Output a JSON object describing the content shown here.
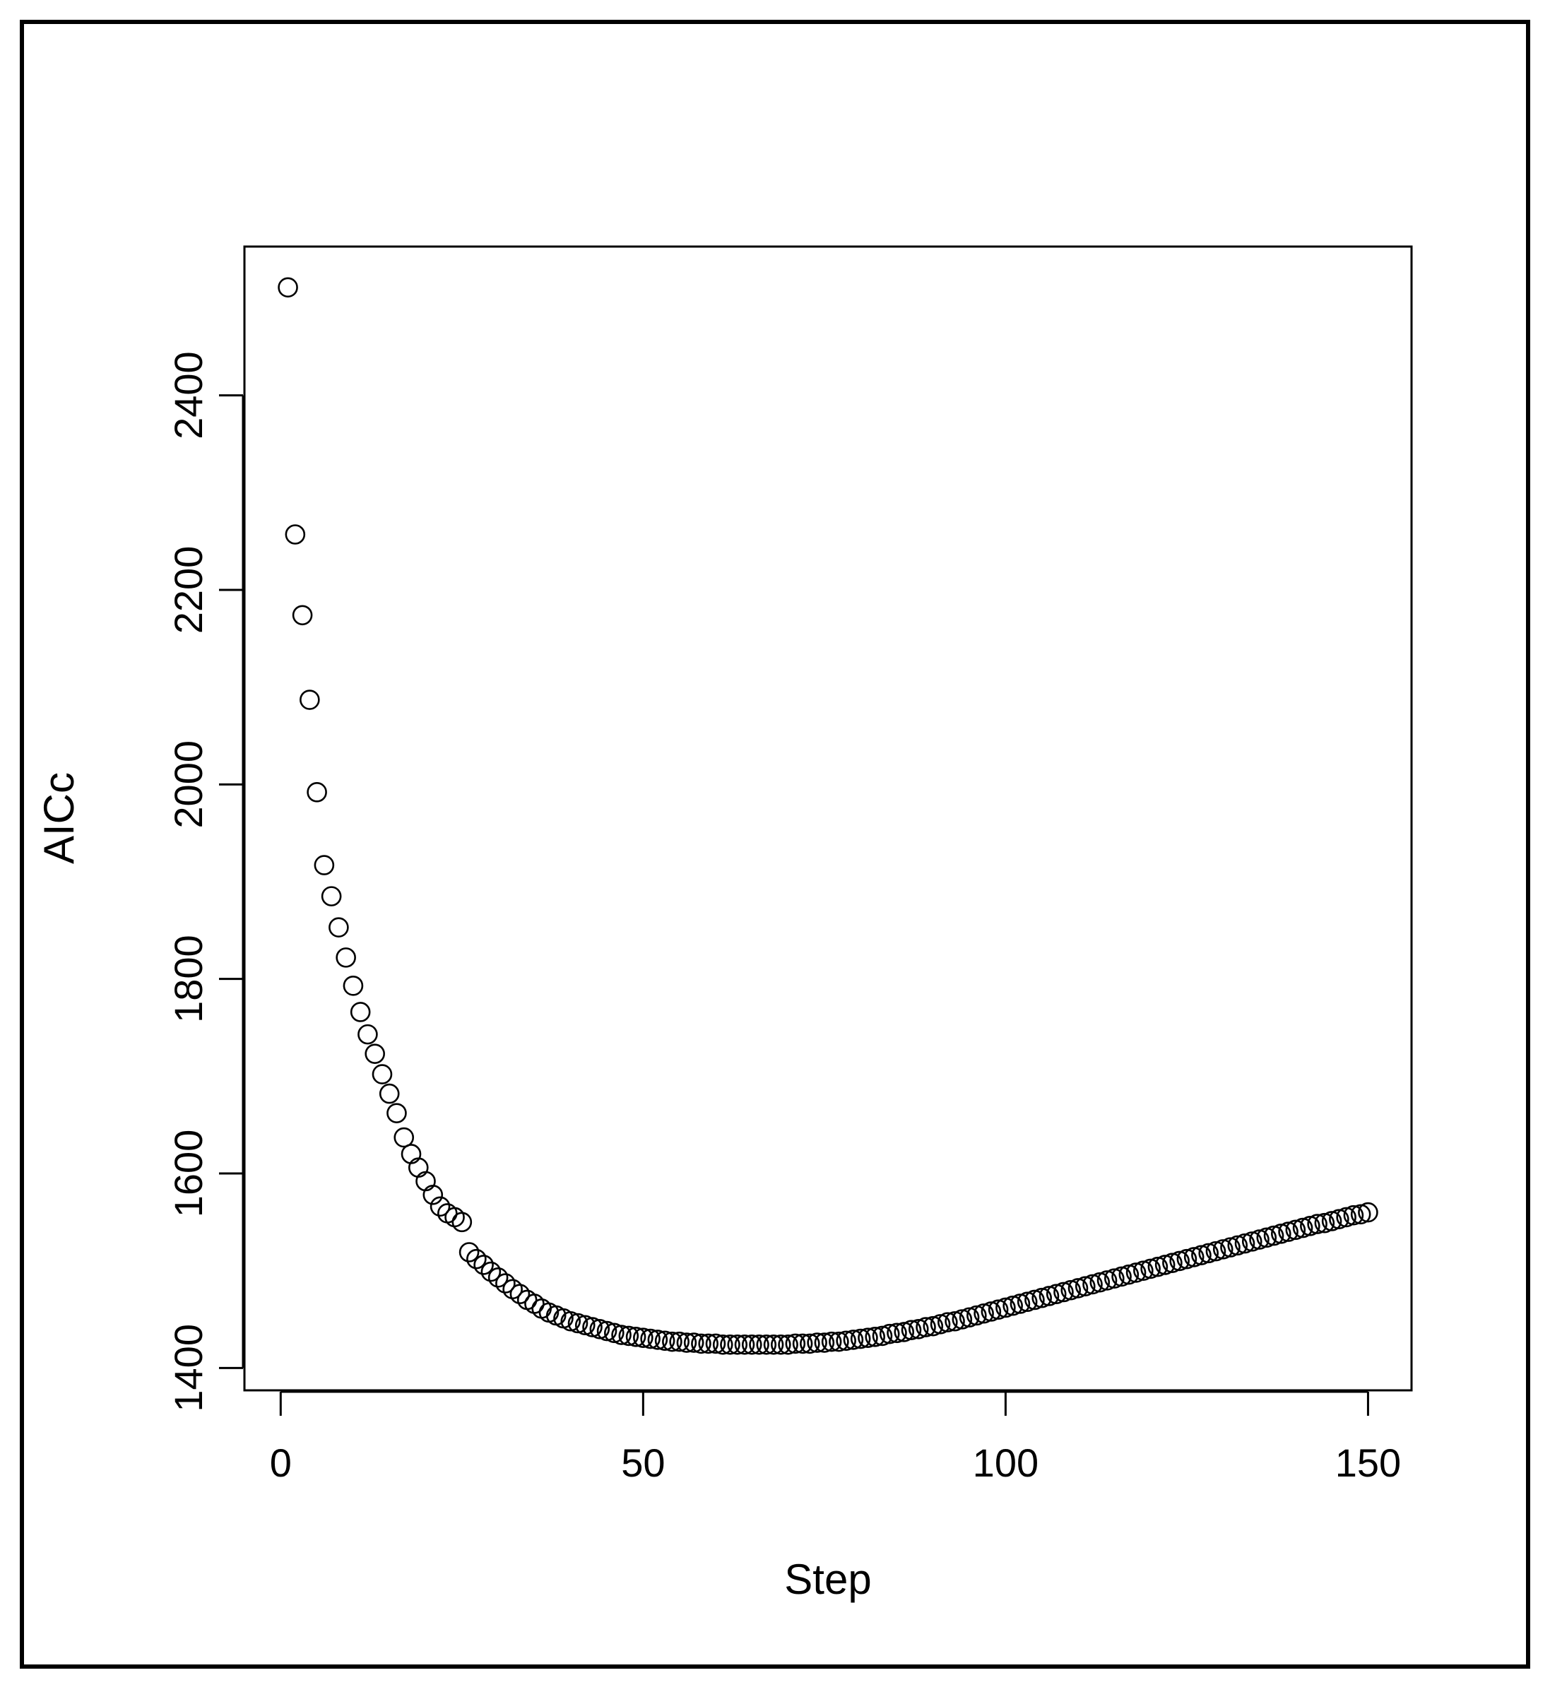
{
  "chart_data": {
    "type": "scatter",
    "title": "",
    "xlabel": "Step",
    "ylabel": "AICc",
    "xlim": [
      -5,
      156
    ],
    "ylim": [
      1377,
      2553
    ],
    "xticks": [
      0,
      50,
      100,
      150
    ],
    "xtick_labels": [
      "0",
      "50",
      "100",
      "150"
    ],
    "yticks": [
      1400,
      1600,
      1800,
      2000,
      2200,
      2400
    ],
    "ytick_labels": [
      "1400",
      "1600",
      "1800",
      "2000",
      "2200",
      "2400"
    ],
    "grid": false,
    "legend": "none",
    "marker": "open-circle",
    "colors": {
      "marker": "#000000",
      "axes": "#000000",
      "background": "#ffffff"
    },
    "series": [
      {
        "x": [
          1,
          2,
          3,
          4,
          5,
          6,
          7,
          8,
          9,
          10,
          11,
          12,
          13,
          14,
          15,
          16,
          17,
          18,
          19,
          20,
          21,
          22,
          23,
          24,
          25,
          26,
          27,
          28,
          29,
          30,
          31,
          32,
          33,
          34,
          35,
          36,
          37,
          38,
          39,
          40,
          41,
          42,
          43,
          44,
          45,
          46,
          47,
          48,
          49,
          50,
          51,
          52,
          53,
          54,
          55,
          56,
          57,
          58,
          59,
          60,
          61,
          62,
          63,
          64,
          65,
          66,
          67,
          68,
          69,
          70,
          71,
          72,
          73,
          74,
          75,
          76,
          77,
          78,
          79,
          80,
          81,
          82,
          83,
          84,
          85,
          86,
          87,
          88,
          89,
          90,
          91,
          92,
          93,
          94,
          95,
          96,
          97,
          98,
          99,
          100,
          101,
          102,
          103,
          104,
          105,
          106,
          107,
          108,
          109,
          110,
          111,
          112,
          113,
          114,
          115,
          116,
          117,
          118,
          119,
          120,
          121,
          122,
          123,
          124,
          125,
          126,
          127,
          128,
          129,
          130,
          131,
          132,
          133,
          134,
          135,
          136,
          137,
          138,
          139,
          140,
          141,
          142,
          143,
          144,
          145,
          146,
          147,
          148,
          149,
          150
        ],
        "y": [
          2511,
          2257,
          2174,
          2087,
          1992,
          1917,
          1885,
          1853,
          1822,
          1793,
          1766,
          1743,
          1723,
          1702,
          1682,
          1662,
          1637,
          1620,
          1606,
          1592,
          1578,
          1566,
          1559,
          1555,
          1550,
          1519,
          1512,
          1506,
          1499,
          1493,
          1487,
          1481,
          1476,
          1470,
          1466,
          1461,
          1457,
          1454,
          1451,
          1448,
          1446,
          1444,
          1442,
          1440,
          1438,
          1436,
          1434,
          1433,
          1432,
          1431,
          1430,
          1429,
          1428,
          1427,
          1427,
          1426,
          1426,
          1425,
          1425,
          1425,
          1424,
          1424,
          1424,
          1424,
          1424,
          1424,
          1424,
          1424,
          1424,
          1424,
          1425,
          1425,
          1425,
          1426,
          1426,
          1427,
          1427,
          1428,
          1429,
          1430,
          1431,
          1432,
          1433,
          1435,
          1436,
          1437,
          1439,
          1440,
          1442,
          1443,
          1445,
          1447,
          1448,
          1450,
          1452,
          1454,
          1456,
          1458,
          1460,
          1462,
          1464,
          1466,
          1468,
          1470,
          1472,
          1474,
          1476,
          1478,
          1480,
          1482,
          1484,
          1486,
          1488,
          1490,
          1492,
          1494,
          1496,
          1498,
          1500,
          1502,
          1504,
          1506,
          1508,
          1510,
          1512,
          1514,
          1516,
          1518,
          1520,
          1522,
          1524,
          1526,
          1528,
          1530,
          1532,
          1534,
          1536,
          1538,
          1540,
          1542,
          1544,
          1546,
          1548,
          1549,
          1551,
          1553,
          1555,
          1557,
          1558,
          1560
        ]
      }
    ]
  }
}
